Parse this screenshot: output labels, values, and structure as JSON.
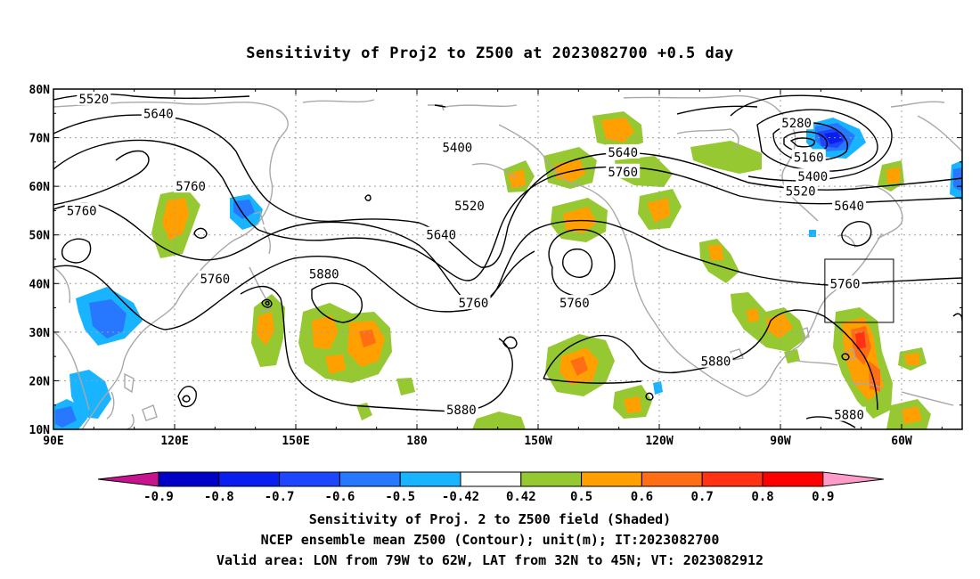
{
  "title": "Sensitivity of Proj2 to Z500 at 2023082700 +0.5 day",
  "lat_labels": [
    "80N",
    "70N",
    "60N",
    "50N",
    "40N",
    "30N",
    "20N",
    "10N"
  ],
  "lon_labels": [
    "90E",
    "120E",
    "150E",
    "180",
    "150W",
    "120W",
    "90W",
    "60W"
  ],
  "contour_labels": [
    {
      "text": "5520",
      "lon": 100,
      "lat": 78
    },
    {
      "text": "5640",
      "lon": 116,
      "lat": 75
    },
    {
      "text": "5760",
      "lon": 124,
      "lat": 60
    },
    {
      "text": "5760",
      "lon": 97,
      "lat": 55
    },
    {
      "text": "5760",
      "lon": 130,
      "lat": 41
    },
    {
      "text": "5880",
      "lon": 157,
      "lat": 42
    },
    {
      "text": "5400",
      "lon": -170,
      "lat": 68
    },
    {
      "text": "5520",
      "lon": -167,
      "lat": 56
    },
    {
      "text": "5640",
      "lon": -174,
      "lat": 50
    },
    {
      "text": "5760",
      "lon": -166,
      "lat": 36
    },
    {
      "text": "5640",
      "lon": -129,
      "lat": 67
    },
    {
      "text": "5760",
      "lon": -129,
      "lat": 63
    },
    {
      "text": "5760",
      "lon": -141,
      "lat": 36
    },
    {
      "text": "5880",
      "lon": -106,
      "lat": 24
    },
    {
      "text": "5280",
      "lon": -86,
      "lat": 73
    },
    {
      "text": "5160",
      "lon": -83,
      "lat": 66
    },
    {
      "text": "5400",
      "lon": -82,
      "lat": 62
    },
    {
      "text": "5520",
      "lon": -85,
      "lat": 59
    },
    {
      "text": "5640",
      "lon": -73,
      "lat": 56
    },
    {
      "text": "5760",
      "lon": -74,
      "lat": 40
    },
    {
      "text": "5880",
      "lon": -73,
      "lat": 13
    },
    {
      "text": "5880",
      "lon": -169,
      "lat": 14
    }
  ],
  "valid_box": {
    "lon_min": -79,
    "lon_max": -62,
    "lat_min": 32,
    "lat_max": 45
  },
  "colorbar": {
    "colors": [
      "#0000c8",
      "#0a1ef0",
      "#1e46ff",
      "#2878ff",
      "#18b4ff",
      "#ffffff",
      "#96c832",
      "#ffa000",
      "#ff6e14",
      "#ff3214",
      "#ff0000"
    ],
    "left_tip_color": "#c8148c",
    "right_tip_color": "#ff9bc8",
    "labels": [
      "-0.9",
      "-0.8",
      "-0.7",
      "-0.6",
      "-0.5",
      "-0.42",
      "0.42",
      "0.5",
      "0.6",
      "0.7",
      "0.8",
      "0.9"
    ]
  },
  "captions": [
    "Sensitivity of Proj. 2 to Z500 field (Shaded)",
    "NCEP ensemble mean Z500 (Contour); unit(m); IT:2023082700",
    "Valid area: LON from 79W to 62W, LAT from 32N to 45N; VT: 2023082912"
  ]
}
